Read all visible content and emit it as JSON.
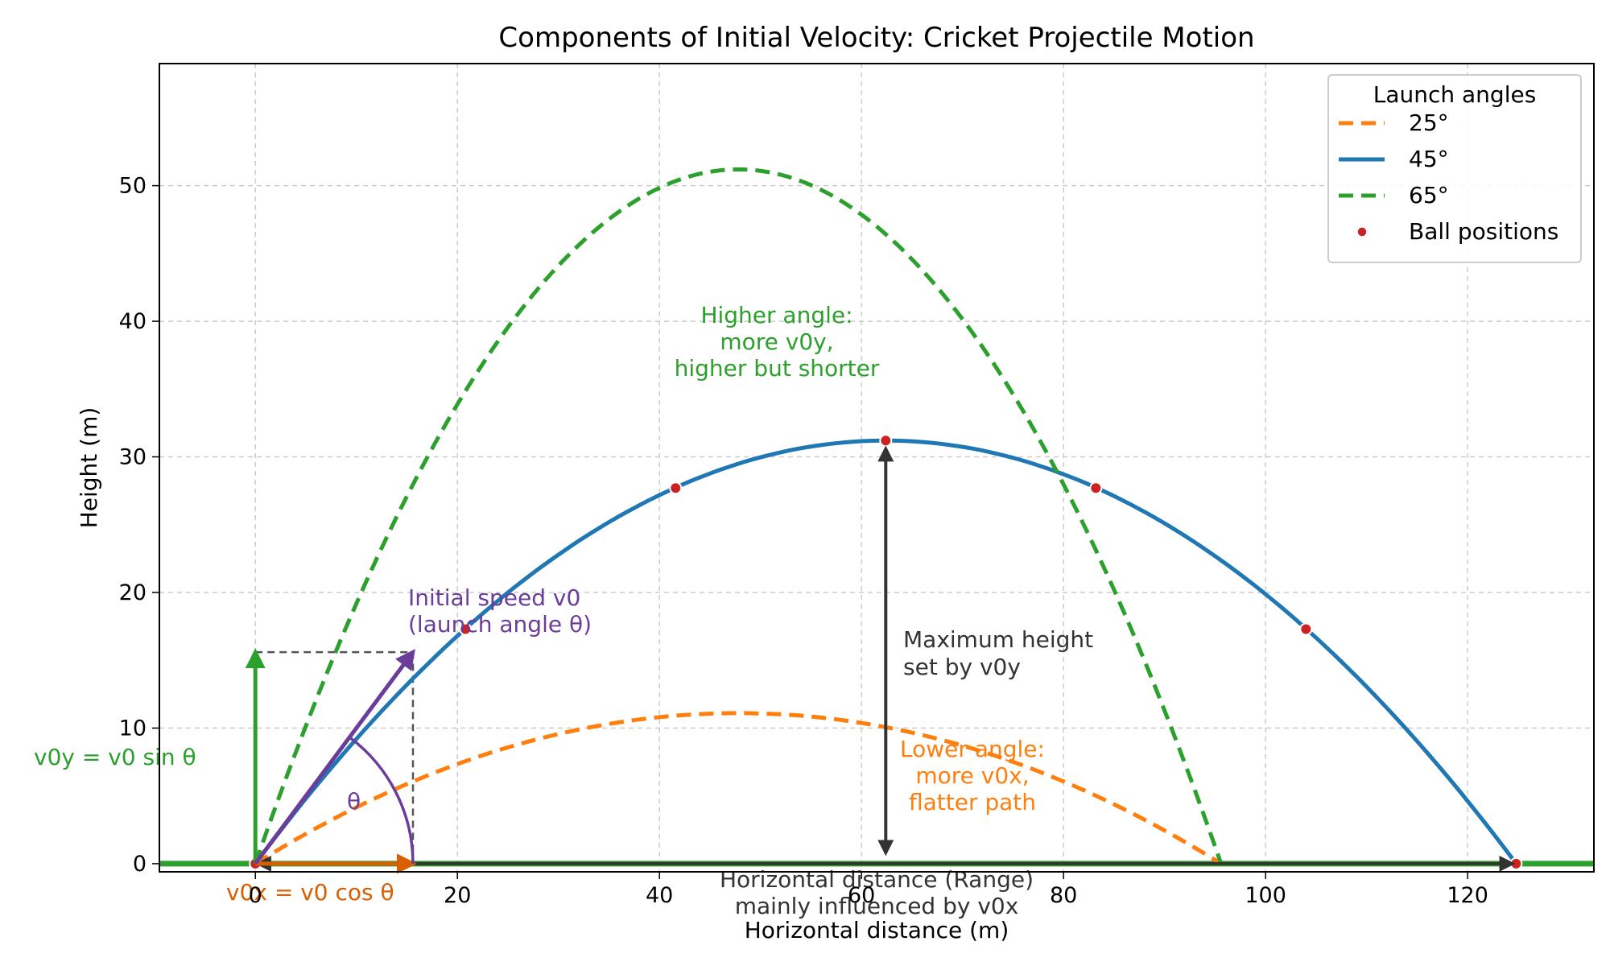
{
  "chart_data": {
    "type": "line",
    "title": "Components of Initial Velocity: Cricket Projectile Motion",
    "xlabel": "Horizontal distance (m)",
    "ylabel": "Height (m)",
    "xlim": [
      -9.5,
      132.5
    ],
    "ylim": [
      -0.6,
      59
    ],
    "xticks": [
      0,
      20,
      40,
      60,
      80,
      100,
      120
    ],
    "yticks": [
      0,
      10,
      20,
      30,
      40,
      50
    ],
    "grid": true,
    "legend": {
      "title": "Launch angles",
      "placement": "top-right",
      "entries": [
        "25°",
        "45°",
        "65°",
        "Ball positions"
      ]
    },
    "series": [
      {
        "name": "25°",
        "angle_deg": 25,
        "range": 95.6,
        "max_height": 11.1,
        "style": "dashed",
        "color": "#ff7f0e"
      },
      {
        "name": "45°",
        "angle_deg": 45,
        "range": 124.8,
        "max_height": 31.2,
        "style": "solid",
        "color": "#1f77b4"
      },
      {
        "name": "65°",
        "angle_deg": 65,
        "range": 95.6,
        "max_height": 51.2,
        "style": "dashed",
        "color": "#2ca02c"
      }
    ],
    "ball_positions": {
      "name": "Ball positions",
      "color": "#cc2222",
      "points": [
        [
          0,
          0
        ],
        [
          20.8,
          17.3
        ],
        [
          41.6,
          27.7
        ],
        [
          62.4,
          31.2
        ],
        [
          83.2,
          27.7
        ],
        [
          104.0,
          17.3
        ],
        [
          124.8,
          0
        ]
      ]
    },
    "velocity_vectors": {
      "v0": {
        "x": 15.6,
        "y": 15.6,
        "color": "#6a3d9a"
      },
      "v0x": {
        "x": 15.6,
        "y": 0,
        "color": "#d95f02"
      },
      "v0y": {
        "x": 0,
        "y": 15.6,
        "color": "#2ca02c"
      }
    },
    "annotations": {
      "v0_label": "Initial speed v0\n(launch angle θ)",
      "theta_label": "θ",
      "v0y_label": "v0y = v0 sin θ",
      "v0x_label": "v0x = v0 cos θ",
      "high_angle_note": "Higher angle:\nmore v0y,\nhigher but shorter",
      "max_height_note": "Maximum height\nset by v0y",
      "low_angle_note": "Lower angle:\nmore v0x,\nflatter path",
      "range_note": "Horizontal distance (Range)\nmainly influenced by v0x"
    },
    "colors": {
      "purple": "#6a3d9a",
      "green": "#2ca02c",
      "orange_text": "#ff7f0e",
      "orange_arrow": "#d95f02",
      "dark": "#333333",
      "ground": "#2ca02c"
    }
  }
}
